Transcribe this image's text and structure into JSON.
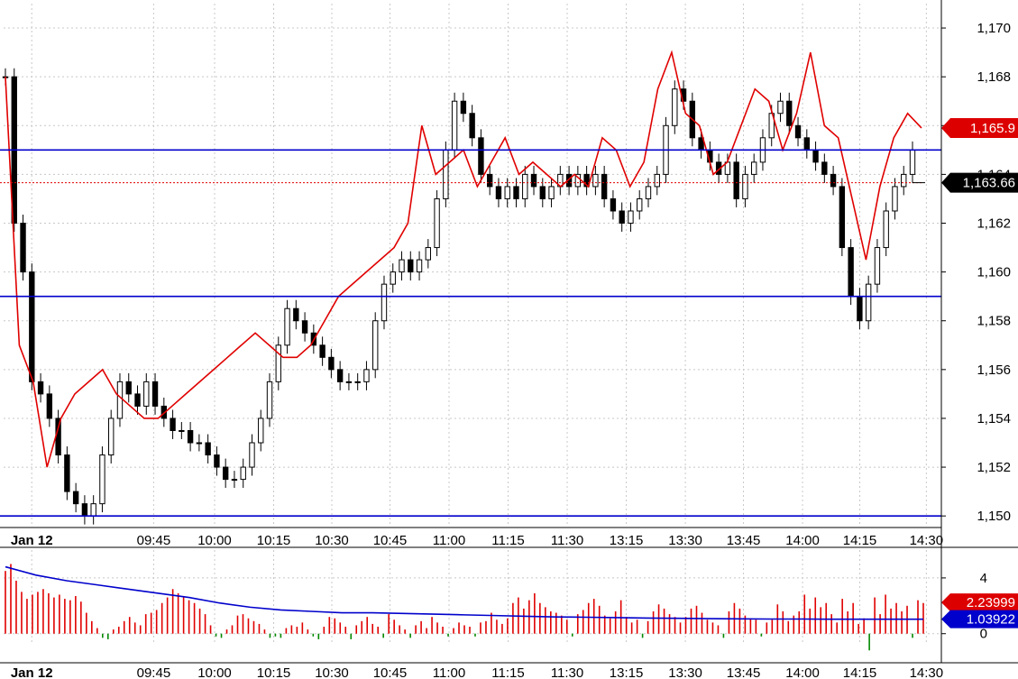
{
  "chart_data": [
    {
      "type": "candlestick",
      "panel": "price",
      "y_unit_note": "",
      "ylim": [
        1149.6,
        1171.0
      ],
      "y_ticks": [
        1150,
        1152,
        1154,
        1156,
        1158,
        1160,
        1162,
        1164,
        1166,
        1168,
        1170
      ],
      "y_tick_labels": [
        "1,150",
        "1,152",
        "1,154",
        "1,156",
        "1,158",
        "1,160",
        "1,162",
        "1,164",
        "1,166",
        "1,168",
        "1,170"
      ],
      "x_ticks": [
        "Jan 12",
        "09:45",
        "10:00",
        "10:15",
        "10:30",
        "10:45",
        "11:00",
        "11:15",
        "11:30",
        "13:15",
        "13:30",
        "13:45",
        "14:00",
        "14:15",
        "14:30"
      ],
      "horizontal_lines": [
        1165.0,
        1159.0,
        1150.0
      ],
      "last_price_line": 1163.66,
      "price_tags": [
        {
          "label": "1,165.9",
          "value": 1165.9,
          "color": "#dd0000"
        },
        {
          "label": "1,163.66",
          "value": 1163.66,
          "color": "#000000"
        }
      ],
      "candles_close": [
        1168.0,
        1162.0,
        1160.0,
        1155.5,
        1155.0,
        1154.0,
        1152.5,
        1151.0,
        1150.5,
        1150.0,
        1150.5,
        1152.5,
        1154.0,
        1155.5,
        1155.0,
        1154.5,
        1155.5,
        1154.5,
        1154.0,
        1153.5,
        1153.5,
        1153.0,
        1153.0,
        1152.5,
        1152.0,
        1151.5,
        1151.5,
        1152.0,
        1153.0,
        1154.0,
        1155.5,
        1157.0,
        1158.5,
        1158.0,
        1157.5,
        1157.0,
        1156.5,
        1156.0,
        1155.5,
        1155.5,
        1155.5,
        1156.0,
        1158.0,
        1159.5,
        1160.0,
        1160.5,
        1160.0,
        1160.5,
        1161.0,
        1163.0,
        1165.0,
        1167.0,
        1166.5,
        1165.5,
        1164.0,
        1163.5,
        1163.0,
        1163.5,
        1163.0,
        1164.0,
        1163.5,
        1163.0,
        1163.5,
        1164.0,
        1163.5,
        1164.0,
        1163.5,
        1164.0,
        1163.0,
        1162.5,
        1162.0,
        1162.5,
        1163.0,
        1163.5,
        1164.0,
        1166.0,
        1167.5,
        1167.0,
        1165.5,
        1165.0,
        1164.5,
        1164.0,
        1164.5,
        1163.0,
        1164.0,
        1164.5,
        1165.5,
        1166.5,
        1167.0,
        1166.0,
        1165.5,
        1165.0,
        1164.5,
        1164.0,
        1163.5,
        1161.0,
        1159.0,
        1158.0,
        1159.5,
        1161.0,
        1162.5,
        1163.5,
        1164.0,
        1165.0
      ],
      "ma_line": [
        1168.0,
        1157.0,
        1155.5,
        1152.0,
        1154.0,
        1155.0,
        1155.5,
        1156.0,
        1155.0,
        1154.5,
        1154.0,
        1154.0,
        1154.5,
        1155.0,
        1155.5,
        1156.0,
        1156.5,
        1157.0,
        1157.5,
        1157.0,
        1156.5,
        1156.5,
        1157.0,
        1158.0,
        1159.0,
        1159.5,
        1160.0,
        1160.5,
        1161.0,
        1162.0,
        1166.0,
        1164.0,
        1164.5,
        1165.0,
        1163.5,
        1164.5,
        1165.5,
        1164.0,
        1164.5,
        1164.0,
        1163.5,
        1164.0,
        1163.5,
        1165.5,
        1165.0,
        1163.5,
        1164.5,
        1167.5,
        1169.0,
        1166.5,
        1166.0,
        1164.0,
        1164.5,
        1166.0,
        1167.5,
        1167.0,
        1165.0,
        1166.5,
        1169.0,
        1166.0,
        1165.5,
        1163.0,
        1160.5,
        1163.5,
        1165.5,
        1166.5,
        1165.9
      ]
    },
    {
      "type": "bar",
      "panel": "volume-ratio",
      "ylim": [
        -0.6,
        6.0
      ],
      "y_ticks": [
        0,
        4
      ],
      "y_tick_labels": [
        "0",
        "4"
      ],
      "value_tags": [
        {
          "label": "2.23999",
          "value": 2.23999,
          "color": "#dd0000"
        },
        {
          "label": "1.03922",
          "value": 1.03922,
          "color": "#0000cc"
        }
      ],
      "x_ticks": [
        "Jan 12",
        "09:45",
        "10:00",
        "10:15",
        "10:30",
        "10:45",
        "11:00",
        "11:15",
        "11:30",
        "13:15",
        "13:30",
        "13:45",
        "14:00",
        "14:15",
        "14:30"
      ],
      "bars": [
        4.5,
        5.0,
        3.8,
        3.0,
        2.5,
        2.8,
        3.0,
        3.2,
        2.9,
        2.6,
        2.8,
        2.5,
        2.4,
        2.7,
        2.3,
        1.5,
        0.9,
        0.4,
        -0.3,
        -0.4,
        0.3,
        0.5,
        0.9,
        1.2,
        0.8,
        0.6,
        1.4,
        1.5,
        1.7,
        2.2,
        2.6,
        3.2,
        2.9,
        2.7,
        2.4,
        2.2,
        1.8,
        1.4,
        0.6,
        -0.2,
        -0.3,
        0.3,
        0.6,
        1.3,
        1.4,
        1.1,
        0.9,
        0.7,
        0.3,
        -0.3,
        -0.2,
        -0.3,
        0.4,
        0.6,
        0.5,
        0.8,
        0.3,
        -0.2,
        -0.4,
        0.5,
        1.2,
        1.1,
        0.8,
        0.5,
        -0.4,
        0.6,
        0.9,
        1.2,
        0.7,
        0.5,
        -0.3,
        1.4,
        1.0,
        0.6,
        0.3,
        -0.3,
        0.6,
        0.9,
        0.4,
        1.2,
        0.8,
        0.5,
        -0.2,
        0.4,
        0.8,
        0.6,
        0.5,
        -0.2,
        0.8,
        0.9,
        1.5,
        1.0,
        0.7,
        1.1,
        2.2,
        2.6,
        1.8,
        2.4,
        2.9,
        2.2,
        1.9,
        1.6,
        1.5,
        1.3,
        1.0,
        -0.2,
        1.4,
        1.7,
        2.2,
        2.5,
        2.0,
        1.3,
        1.1,
        1.6,
        2.4,
        1.2,
        0.8,
        1.0,
        -0.3,
        0.9,
        1.6,
        2.1,
        1.8,
        1.4,
        1.2,
        0.8,
        1.2,
        1.8,
        2.0,
        1.5,
        1.0,
        0.8,
        0.6,
        -0.3,
        1.6,
        2.2,
        1.8,
        1.3,
        1.1,
        1.0,
        -0.2,
        0.8,
        1.0,
        2.1,
        1.6,
        0.9,
        1.3,
        1.6,
        2.8,
        1.8,
        2.6,
        1.9,
        2.2,
        1.4,
        0.8,
        2.5,
        1.6,
        2.2,
        0.7,
        1.1,
        -1.2,
        2.6,
        1.4,
        2.8,
        1.8,
        2.2,
        1.6,
        2.0,
        -0.3,
        2.4,
        2.2
      ],
      "avg_line": [
        4.8,
        4.2,
        3.8,
        3.5,
        3.2,
        2.9,
        2.6,
        2.2,
        1.9,
        1.7,
        1.6,
        1.5,
        1.5,
        1.45,
        1.4,
        1.35,
        1.3,
        1.25,
        1.2,
        1.18,
        1.15,
        1.12,
        1.1,
        1.08,
        1.06,
        1.05,
        1.05,
        1.04,
        1.04,
        1.04,
        1.04
      ]
    }
  ]
}
